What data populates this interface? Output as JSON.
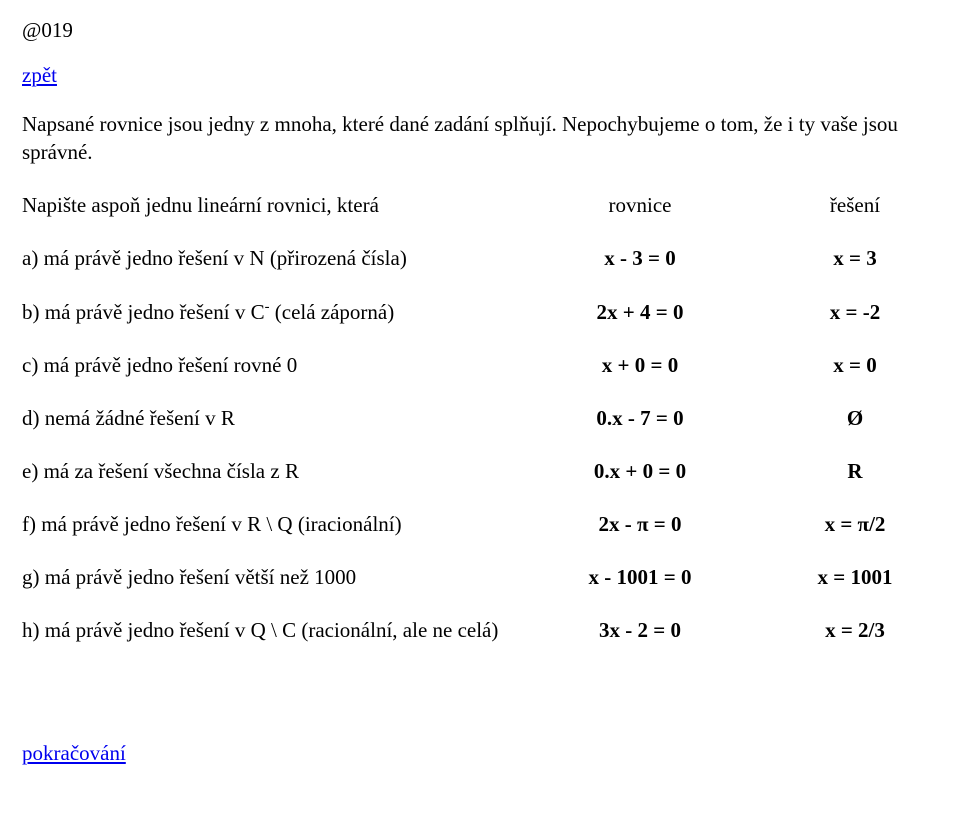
{
  "header_tag": "@019",
  "back_link": "zpět",
  "intro": "Napsané  rovnice  jsou  jedny z mnoha, které dané zadání splňují. Nepochybujeme o tom, že i ty vaše jsou správné.",
  "lead": {
    "desc": "Napište aspoň jednu lineární rovnici, která",
    "eq": "rovnice",
    "sol": "řešení"
  },
  "items": {
    "a": {
      "desc": "a) má právě jedno řešení v N (přirozená čísla)",
      "eq": "x - 3 = 0",
      "sol": "x = 3"
    },
    "b": {
      "desc_pre": "b) má právě jedno řešení v C",
      "desc_sup": "-",
      "desc_post": " (celá záporná)",
      "eq": "2x + 4 = 0",
      "sol": "x = -2"
    },
    "c": {
      "desc": "c) má právě jedno řešení rovné 0",
      "eq": "x + 0 = 0",
      "sol": "x = 0"
    },
    "d": {
      "desc": "d) nemá žádné řešení v R",
      "eq": "0.x - 7 = 0",
      "sol": "Ø"
    },
    "e": {
      "desc": "e) má za řešení všechna čísla z R",
      "eq": "0.x + 0 = 0",
      "sol": "R"
    },
    "f": {
      "desc": "f) má právě jedno řešení v R \\ Q (iracionální)",
      "eq": "2x - π = 0",
      "sol": "x = π/2"
    },
    "g": {
      "desc": "g) má právě jedno řešení větší než 1000",
      "eq": "x - 1001 = 0",
      "sol": "x = 1001"
    },
    "h": {
      "desc": "h) má právě jedno řešení v Q \\ C (racionální, ale ne celá)",
      "eq": "3x - 2 = 0",
      "sol": "x = 2/3"
    }
  },
  "continue_link": "pokračování"
}
